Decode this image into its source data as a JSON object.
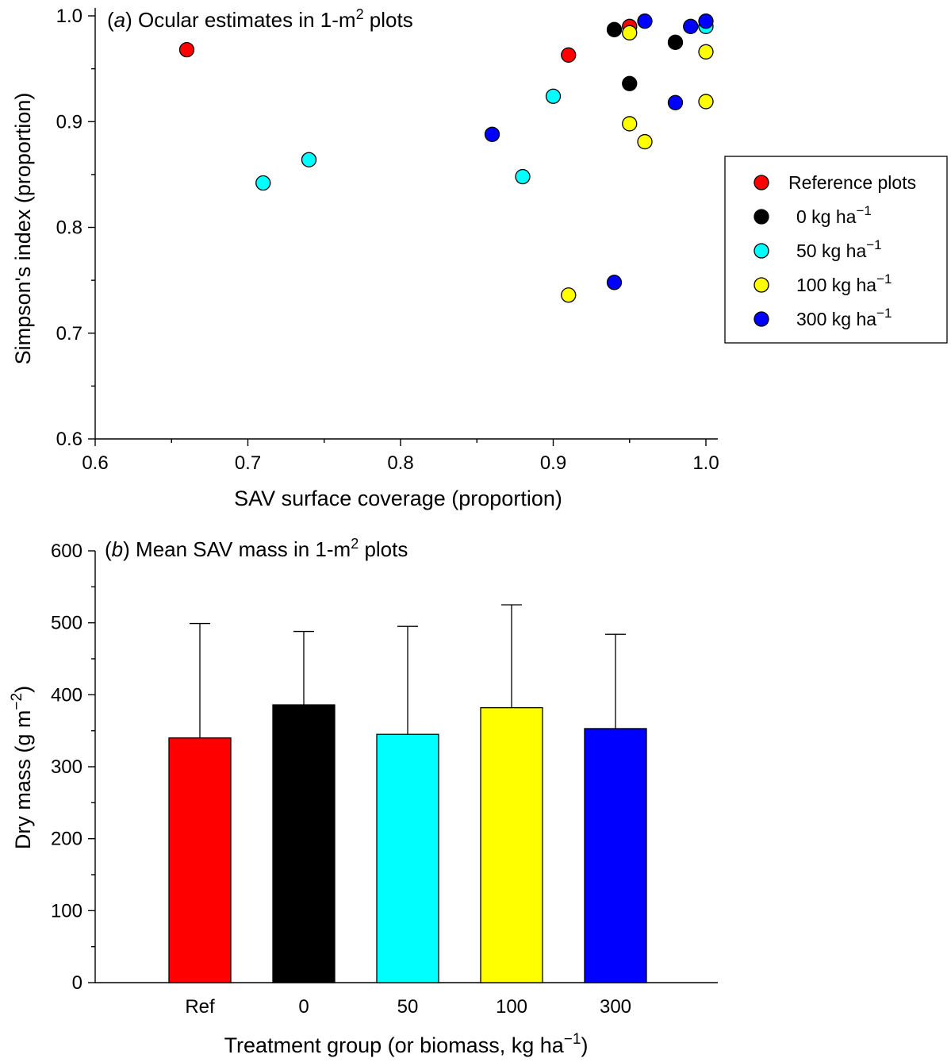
{
  "chart_data": [
    {
      "type": "scatter",
      "title": "(a) Ocular estimates in 1-m² plots",
      "title_parts": {
        "letter": "a",
        "text": " Ocular estimates in 1-m",
        "sup": "2",
        "after": " plots"
      },
      "xlabel": "SAV surface coverage (proportion)",
      "ylabel": "Simpson's index (proportion)",
      "xlim": [
        0.6,
        1.0
      ],
      "ylim": [
        0.6,
        1.0
      ],
      "xticks": [
        0.6,
        0.7,
        0.8,
        0.9,
        1.0
      ],
      "xtick_labels": [
        "0.6",
        "0.7",
        "0.8",
        "0.9",
        "1.0"
      ],
      "yticks": [
        0.6,
        0.7,
        0.8,
        0.9,
        1.0
      ],
      "ytick_labels": [
        "0.6",
        "0.7",
        "0.8",
        "0.9",
        "1.0"
      ],
      "legend_position": "right",
      "series": [
        {
          "name": "Reference plots",
          "label_main": "Reference plots",
          "label_sup": "",
          "color": "#ff0000",
          "points": [
            [
              0.66,
              0.968
            ],
            [
              0.91,
              0.963
            ],
            [
              0.95,
              0.99
            ]
          ]
        },
        {
          "name": "0 kg ha−1",
          "label_main": "0 kg ha",
          "label_sup": "−1",
          "color": "#000000",
          "points": [
            [
              0.94,
              0.987
            ],
            [
              0.95,
              0.936
            ],
            [
              0.98,
              0.975
            ]
          ]
        },
        {
          "name": "50 kg ha−1",
          "label_main": "50 kg ha",
          "label_sup": "−1",
          "color": "#00ffff",
          "points": [
            [
              0.71,
              0.842
            ],
            [
              0.74,
              0.864
            ],
            [
              0.88,
              0.848
            ],
            [
              0.9,
              0.924
            ],
            [
              1.0,
              0.99
            ]
          ]
        },
        {
          "name": "100 kg ha−1",
          "label_main": "100 kg ha",
          "label_sup": "−1",
          "color": "#ffff00",
          "points": [
            [
              0.91,
              0.736
            ],
            [
              0.95,
              0.984
            ],
            [
              0.95,
              0.898
            ],
            [
              0.96,
              0.881
            ],
            [
              1.0,
              0.966
            ],
            [
              1.0,
              0.919
            ]
          ]
        },
        {
          "name": "300 kg ha−1",
          "label_main": "300 kg ha",
          "label_sup": "−1",
          "color": "#0000ff",
          "points": [
            [
              0.86,
              0.888
            ],
            [
              0.94,
              0.748
            ],
            [
              0.96,
              0.995
            ],
            [
              0.98,
              0.918
            ],
            [
              0.99,
              0.99
            ],
            [
              1.0,
              0.995
            ]
          ]
        }
      ]
    },
    {
      "type": "bar",
      "title": "(b) Mean SAV mass in 1-m² plots",
      "title_parts": {
        "letter": "b",
        "text": " Mean SAV mass in 1-m",
        "sup": "2",
        "after": " plots"
      },
      "xlabel": "Treatment group (or biomass, kg ha−1)",
      "xlabel_parts": {
        "main": "Treatment group (or biomass, kg ha",
        "sup": "−1",
        "after": ")"
      },
      "ylabel": "Dry mass (g m−2)",
      "ylabel_parts": {
        "main": "Dry mass (g m",
        "sup": "−2",
        "after": ")"
      },
      "ylim": [
        0,
        600
      ],
      "yticks": [
        0,
        100,
        200,
        300,
        400,
        500,
        600
      ],
      "ytick_labels": [
        "0",
        "100",
        "200",
        "300",
        "400",
        "500",
        "600"
      ],
      "categories": [
        "Ref",
        "0",
        "50",
        "100",
        "300"
      ],
      "values": [
        340,
        386,
        345,
        382,
        353
      ],
      "error_upper": [
        499,
        488,
        495,
        525,
        484
      ],
      "colors": [
        "#ff0000",
        "#000000",
        "#00ffff",
        "#ffff00",
        "#0000ff"
      ]
    }
  ]
}
